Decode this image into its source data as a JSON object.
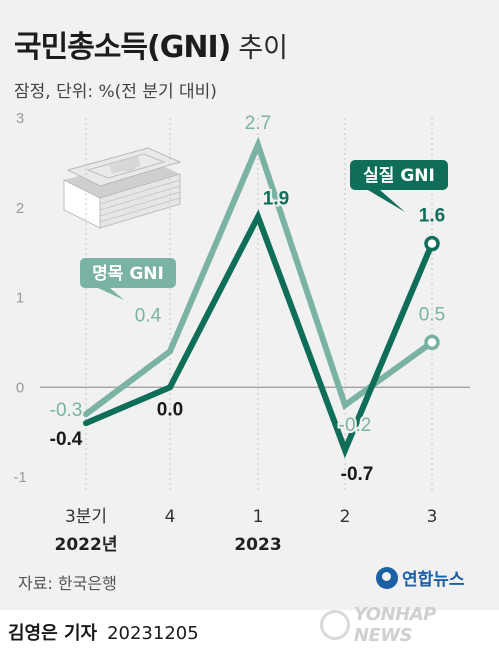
{
  "header": {
    "title": "국민총소득(GNI)",
    "title_suffix": "추이",
    "subtitle": "잠정, 단위: %(전 분기 대비)"
  },
  "chart_data": {
    "type": "line",
    "title": "국민총소득(GNI) 추이",
    "subtitle": "잠정, 단위: %(전 분기 대비)",
    "categories": [
      "3분기",
      "4",
      "1",
      "2",
      "3"
    ],
    "year_labels": [
      {
        "label": "2022년",
        "under_category": "3분기"
      },
      {
        "label": "2023",
        "under_category": "1"
      }
    ],
    "series": [
      {
        "name": "명목 GNI",
        "values": [
          -0.3,
          0.4,
          2.7,
          -0.2,
          0.5
        ],
        "labels": [
          "-0.3",
          "0.4",
          "2.7",
          "-0.2",
          "0.5"
        ],
        "color": "#7ab2a3"
      },
      {
        "name": "실질 GNI",
        "values": [
          -0.4,
          0.0,
          1.9,
          -0.7,
          1.6
        ],
        "labels": [
          "-0.4",
          "0.0",
          "1.9",
          "-0.7",
          "1.6"
        ],
        "color": "#0f6e58"
      }
    ],
    "ylim": [
      -1,
      3
    ],
    "yticks": [
      "-1",
      "0",
      "1",
      "2",
      "3"
    ],
    "grid": false,
    "zero_line": true
  },
  "colors": {
    "nominal": "#7ab2a3",
    "real": "#0f6e58",
    "background": "#f1f1f1",
    "agency": "#1b5fa5"
  },
  "icon": "money-stack-icon",
  "source": "자료: 한국은행",
  "agency": "연합뉴스",
  "byline": {
    "name": "김영은 기자",
    "date": "20231205"
  },
  "watermark": "YONHAP NEWS"
}
